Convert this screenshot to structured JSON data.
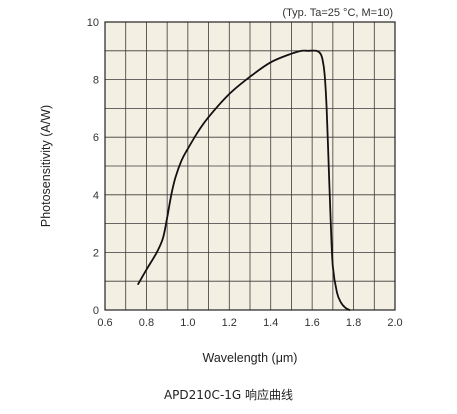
{
  "chart_data": {
    "type": "line",
    "note": "(Typ. Ta=25 °C, M=10)",
    "xlabel": "Wavelength (μm)",
    "ylabel": "Photosensitivity (A/W)",
    "xlim": [
      0.6,
      2.0
    ],
    "ylim": [
      0,
      10
    ],
    "xticks": [
      "0.6",
      "0.8",
      "1.0",
      "1.2",
      "1.4",
      "1.6",
      "1.8",
      "2.0"
    ],
    "yticks": [
      "0",
      "2",
      "4",
      "6",
      "8",
      "10"
    ],
    "grid": true,
    "plot_background": "#f4efe3",
    "line_color": "#111111",
    "series": [
      {
        "x": [
          0.76,
          0.8,
          0.85,
          0.88,
          0.9,
          0.92,
          0.94,
          0.97,
          1.0,
          1.05,
          1.1,
          1.2,
          1.3,
          1.4,
          1.5,
          1.55,
          1.58,
          1.62,
          1.64,
          1.65,
          1.66,
          1.67,
          1.68,
          1.69,
          1.7,
          1.72,
          1.74,
          1.76,
          1.78
        ],
        "y": [
          0.9,
          1.4,
          2.0,
          2.5,
          3.2,
          4.0,
          4.6,
          5.2,
          5.6,
          6.2,
          6.7,
          7.5,
          8.1,
          8.6,
          8.9,
          9.0,
          9.0,
          9.0,
          8.9,
          8.7,
          8.2,
          7.0,
          5.0,
          3.0,
          1.5,
          0.6,
          0.25,
          0.08,
          0.0
        ]
      }
    ]
  },
  "caption": "APD210C-1G 响应曲线"
}
